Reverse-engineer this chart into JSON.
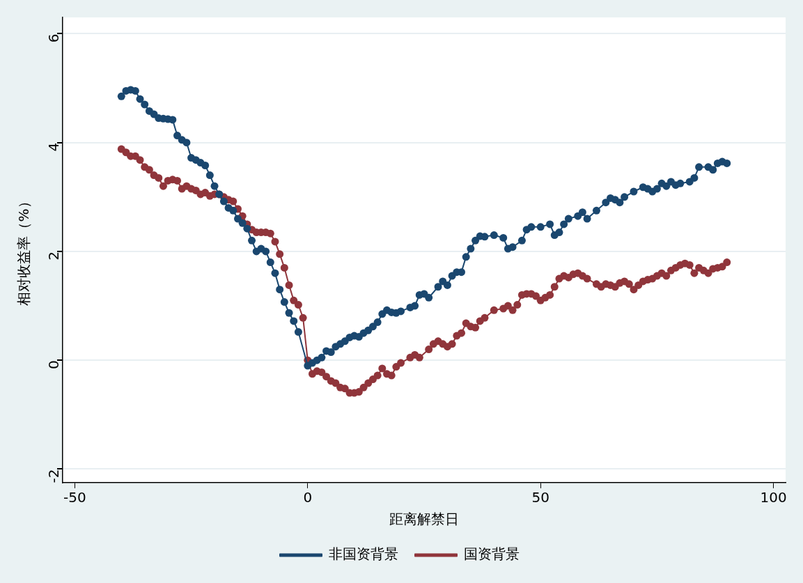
{
  "chart_data": {
    "type": "line",
    "xlabel": "距离解禁日",
    "ylabel": "相对收益率（%）",
    "xlim": [
      -52.6,
      102.6
    ],
    "ylim": [
      -2.25,
      6.3
    ],
    "xticks": [
      -50,
      0,
      50,
      100
    ],
    "yticks": [
      -2,
      0,
      2,
      4,
      6
    ],
    "grid": "y",
    "legend": "bottom",
    "marker": "circle",
    "line_style": "solid",
    "series": [
      {
        "name": "非国资背景",
        "color": "#1a476f",
        "x": [
          -40,
          -39,
          -38,
          -37,
          -36,
          -35,
          -34,
          -33,
          -32,
          -31,
          -30,
          -29,
          -28,
          -27,
          -26,
          -25,
          -24,
          -23,
          -22,
          -21,
          -20,
          -19,
          -18,
          -17,
          -16,
          -15,
          -14,
          -13,
          -12,
          -11,
          -10,
          -9,
          -8,
          -7,
          -6,
          -5,
          -4,
          -3,
          -2,
          0,
          1,
          2,
          3,
          4,
          5,
          6,
          7,
          8,
          9,
          10,
          11,
          12,
          13,
          14,
          15,
          16,
          17,
          18,
          19,
          20,
          22,
          23,
          24,
          25,
          26,
          28,
          29,
          30,
          31,
          32,
          33,
          34,
          35,
          36,
          37,
          38,
          40,
          42,
          43,
          44,
          46,
          47,
          48,
          50,
          52,
          53,
          54,
          55,
          56,
          58,
          59,
          60,
          62,
          64,
          65,
          66,
          67,
          68,
          70,
          72,
          73,
          74,
          75,
          76,
          77,
          78,
          79,
          80,
          82,
          83,
          84,
          86,
          87,
          88,
          89,
          90
        ],
        "values": [
          4.85,
          4.95,
          4.97,
          4.95,
          4.8,
          4.7,
          4.58,
          4.52,
          4.45,
          4.44,
          4.43,
          4.42,
          4.13,
          4.05,
          4.0,
          3.72,
          3.68,
          3.63,
          3.58,
          3.4,
          3.2,
          3.05,
          2.92,
          2.8,
          2.75,
          2.6,
          2.52,
          2.42,
          2.2,
          2.0,
          2.05,
          2.0,
          1.8,
          1.6,
          1.3,
          1.07,
          0.87,
          0.72,
          0.52,
          -0.1,
          -0.05,
          0.0,
          0.05,
          0.17,
          0.15,
          0.25,
          0.3,
          0.35,
          0.42,
          0.45,
          0.43,
          0.5,
          0.55,
          0.62,
          0.7,
          0.85,
          0.92,
          0.88,
          0.87,
          0.9,
          0.97,
          1.0,
          1.2,
          1.22,
          1.15,
          1.35,
          1.45,
          1.38,
          1.55,
          1.62,
          1.62,
          1.9,
          2.05,
          2.2,
          2.28,
          2.27,
          2.3,
          2.25,
          2.05,
          2.08,
          2.2,
          2.4,
          2.45,
          2.45,
          2.5,
          2.3,
          2.35,
          2.5,
          2.6,
          2.65,
          2.72,
          2.6,
          2.75,
          2.9,
          2.98,
          2.95,
          2.9,
          3.0,
          3.1,
          3.18,
          3.15,
          3.1,
          3.15,
          3.25,
          3.2,
          3.28,
          3.22,
          3.25,
          3.28,
          3.35,
          3.55,
          3.55,
          3.5,
          3.62,
          3.65,
          3.62
        ]
      },
      {
        "name": "国资背景",
        "color": "#90353b",
        "x": [
          -40,
          -39,
          -38,
          -37,
          -36,
          -35,
          -34,
          -33,
          -32,
          -31,
          -30,
          -29,
          -28,
          -27,
          -26,
          -25,
          -24,
          -23,
          -22,
          -21,
          -20,
          -19,
          -18,
          -17,
          -16,
          -15,
          -14,
          -13,
          -12,
          -11,
          -10,
          -9,
          -8,
          -7,
          -6,
          -5,
          -4,
          -3,
          -2,
          -1,
          0,
          1,
          2,
          3,
          4,
          5,
          6,
          7,
          8,
          9,
          10,
          11,
          12,
          13,
          14,
          15,
          16,
          17,
          18,
          19,
          20,
          22,
          23,
          24,
          26,
          27,
          28,
          29,
          30,
          31,
          32,
          33,
          34,
          35,
          36,
          37,
          38,
          40,
          42,
          43,
          44,
          45,
          46,
          47,
          48,
          49,
          50,
          51,
          52,
          53,
          54,
          55,
          56,
          57,
          58,
          59,
          60,
          62,
          63,
          64,
          65,
          66,
          67,
          68,
          69,
          70,
          71,
          72,
          73,
          74,
          75,
          76,
          77,
          78,
          79,
          80,
          81,
          82,
          83,
          84,
          85,
          86,
          87,
          88,
          89,
          90
        ],
        "values": [
          3.88,
          3.82,
          3.75,
          3.75,
          3.68,
          3.55,
          3.5,
          3.4,
          3.35,
          3.2,
          3.3,
          3.32,
          3.3,
          3.15,
          3.2,
          3.15,
          3.12,
          3.05,
          3.08,
          3.02,
          3.05,
          3.05,
          3.0,
          2.95,
          2.92,
          2.78,
          2.65,
          2.5,
          2.4,
          2.35,
          2.35,
          2.35,
          2.33,
          2.18,
          1.95,
          1.7,
          1.38,
          1.1,
          1.02,
          0.78,
          0.0,
          -0.25,
          -0.2,
          -0.22,
          -0.3,
          -0.38,
          -0.42,
          -0.5,
          -0.52,
          -0.6,
          -0.6,
          -0.58,
          -0.5,
          -0.42,
          -0.35,
          -0.28,
          -0.15,
          -0.25,
          -0.28,
          -0.12,
          -0.05,
          0.05,
          0.1,
          0.05,
          0.2,
          0.3,
          0.35,
          0.3,
          0.25,
          0.3,
          0.45,
          0.5,
          0.68,
          0.62,
          0.6,
          0.72,
          0.78,
          0.92,
          0.95,
          1.0,
          0.92,
          1.02,
          1.2,
          1.22,
          1.22,
          1.18,
          1.1,
          1.15,
          1.2,
          1.35,
          1.5,
          1.55,
          1.52,
          1.58,
          1.6,
          1.55,
          1.5,
          1.4,
          1.35,
          1.4,
          1.38,
          1.35,
          1.42,
          1.45,
          1.4,
          1.3,
          1.38,
          1.45,
          1.48,
          1.5,
          1.55,
          1.6,
          1.55,
          1.65,
          1.7,
          1.75,
          1.78,
          1.75,
          1.6,
          1.7,
          1.65,
          1.6,
          1.68,
          1.7,
          1.72,
          1.8
        ]
      }
    ]
  }
}
